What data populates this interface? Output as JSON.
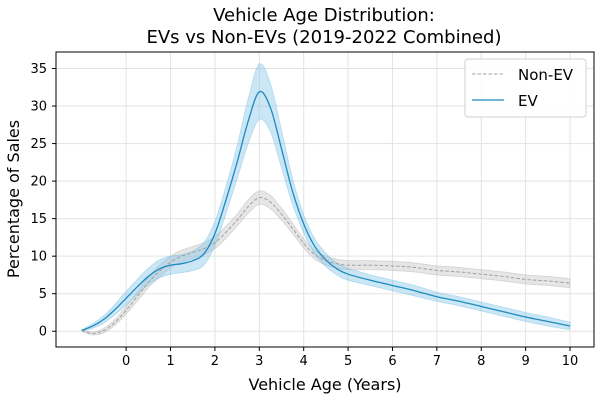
{
  "chart_data": {
    "type": "line",
    "title_line1": "Vehicle Age Distribution:",
    "title_line2": "EVs vs Non-EVs (2019-2022 Combined)",
    "xlabel": "Vehicle Age (Years)",
    "ylabel": "Percentage of Sales",
    "xlim": [
      -1.58,
      10.54
    ],
    "ylim": [
      -2.1,
      37.2
    ],
    "xticks": [
      0,
      1,
      2,
      3,
      4,
      5,
      6,
      7,
      8,
      9,
      10
    ],
    "xtick_labels": [
      "0",
      "1",
      "2",
      "3",
      "4",
      "5",
      "6",
      "7",
      "8",
      "9",
      "10"
    ],
    "yticks": [
      0,
      5,
      10,
      15,
      20,
      25,
      30,
      35
    ],
    "ytick_labels": [
      "0",
      "5",
      "10",
      "15",
      "20",
      "25",
      "30",
      "35"
    ],
    "grid": true,
    "legend_position": "top-right",
    "x": [
      -1,
      -0.75,
      -0.5,
      -0.25,
      0,
      0.25,
      0.5,
      0.75,
      1,
      1.25,
      1.5,
      1.75,
      2,
      2.25,
      2.5,
      2.75,
      3,
      3.25,
      3.5,
      3.75,
      4,
      4.25,
      4.5,
      4.75,
      5,
      5.5,
      6,
      6.5,
      7,
      7.5,
      8,
      8.5,
      9,
      9.5,
      10
    ],
    "series": [
      {
        "name": "Non-EV",
        "color": "#a0a0a0",
        "fill_color": "#b8b8b8",
        "style": "dashed",
        "values": [
          0.1,
          -0.3,
          0.1,
          1.2,
          2.8,
          4.6,
          6.5,
          8.0,
          9.2,
          10.0,
          10.5,
          11.0,
          11.8,
          13.2,
          14.8,
          16.6,
          17.8,
          17.2,
          15.6,
          13.7,
          11.7,
          10.2,
          9.4,
          9.0,
          8.8,
          8.8,
          8.7,
          8.5,
          8.1,
          7.9,
          7.6,
          7.3,
          6.9,
          6.7,
          6.4
        ],
        "band": [
          0.1,
          0.2,
          0.3,
          0.4,
          0.5,
          0.6,
          0.7,
          0.8,
          0.8,
          0.8,
          0.8,
          0.8,
          0.8,
          0.8,
          0.8,
          0.9,
          0.9,
          0.9,
          0.8,
          0.7,
          0.6,
          0.6,
          0.6,
          0.6,
          0.6,
          0.6,
          0.6,
          0.6,
          0.6,
          0.6,
          0.6,
          0.6,
          0.6,
          0.6,
          0.6
        ]
      },
      {
        "name": "EV",
        "color": "#1f8ac0",
        "fill_color": "#7cc4e6",
        "style": "solid",
        "values": [
          0.1,
          0.7,
          1.6,
          2.9,
          4.4,
          5.9,
          7.3,
          8.3,
          8.8,
          9.0,
          9.4,
          10.3,
          13.0,
          17.5,
          22.5,
          28.0,
          31.9,
          29.8,
          24.3,
          18.6,
          14.3,
          11.3,
          9.5,
          8.3,
          7.6,
          6.8,
          6.1,
          5.4,
          4.6,
          4.0,
          3.3,
          2.6,
          1.9,
          1.3,
          0.7
        ],
        "band": [
          0.1,
          0.3,
          0.5,
          0.7,
          0.9,
          1.0,
          1.1,
          1.2,
          1.2,
          1.2,
          1.3,
          1.5,
          1.6,
          1.8,
          2.2,
          3.0,
          3.7,
          3.2,
          2.5,
          1.7,
          1.2,
          1.0,
          0.9,
          0.8,
          0.8,
          0.7,
          0.7,
          0.7,
          0.6,
          0.6,
          0.6,
          0.6,
          0.6,
          0.6,
          0.5
        ]
      }
    ]
  }
}
